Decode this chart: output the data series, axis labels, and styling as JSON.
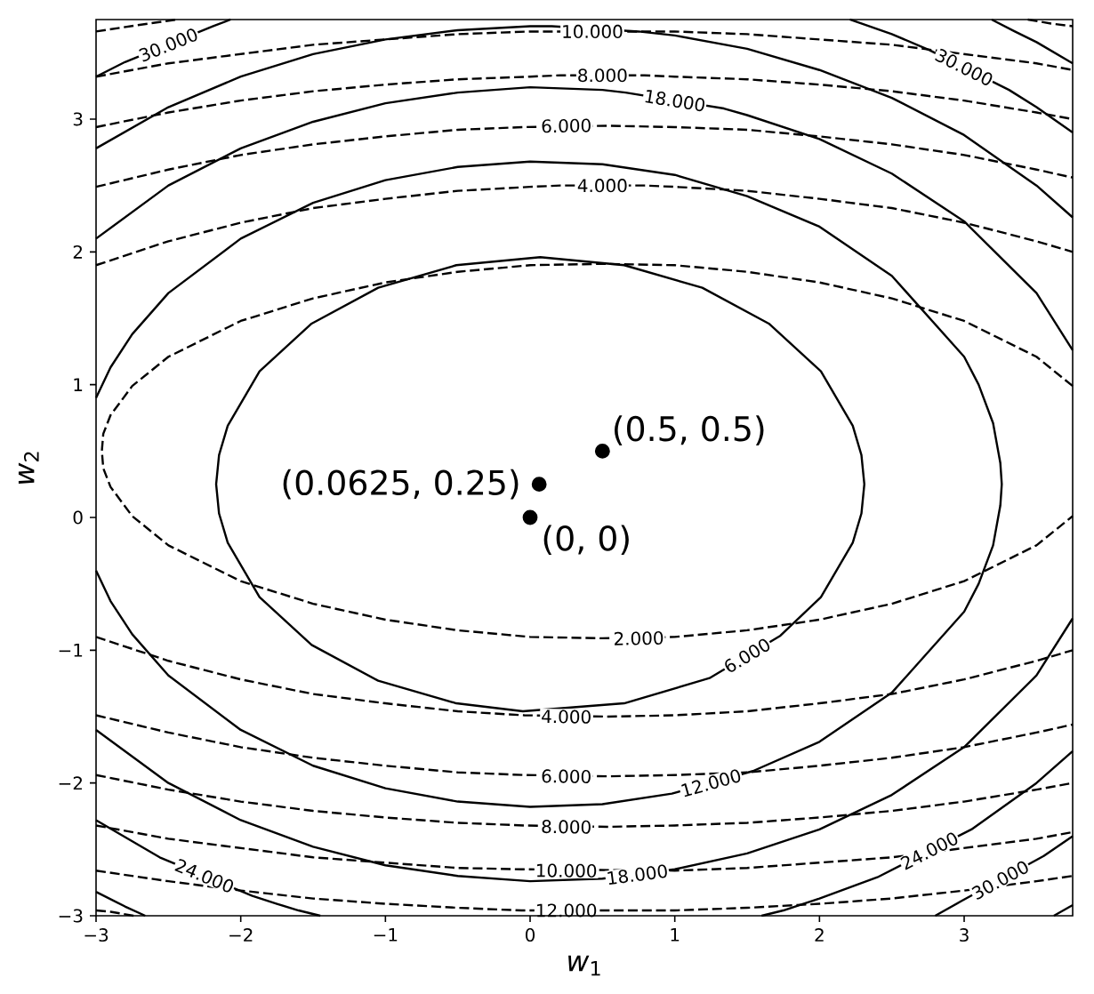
{
  "chart_data": {
    "type": "line",
    "xlabel": "*w*$_{1}$",
    "ylabel": "*w*$_{2}$",
    "xlim": [
      -3,
      3.75
    ],
    "ylim": [
      -3,
      3.75
    ],
    "xticks": [
      {
        "value": -3,
        "label": "−3"
      },
      {
        "value": -2,
        "label": "−2"
      },
      {
        "value": -1,
        "label": "−1"
      },
      0,
      1,
      2,
      3
    ],
    "yticks": [
      {
        "value": -3,
        "label": "−3"
      },
      {
        "value": -2,
        "label": "−2"
      },
      {
        "value": -1,
        "label": "−1"
      },
      0,
      1,
      2,
      3
    ],
    "series": [
      {
        "color": "#000000",
        "line_style": "dashed",
        "x": [
          3.75,
          3.5,
          3,
          2.5,
          2,
          1.5,
          1,
          0.5,
          0,
          -0.5,
          -1,
          -1.5,
          -2,
          -2.5,
          -2.75,
          -2.9,
          -2.95,
          -2.96,
          -2.95,
          -2.9,
          -2.75,
          -2.5,
          -2,
          -1.5,
          -1,
          -0.5,
          0,
          0.5,
          1,
          1.5,
          2,
          2.5,
          3,
          3.5,
          3.75
        ],
        "values": [
          0.99,
          1.21,
          1.48,
          1.65,
          1.77,
          1.85,
          1.9,
          1.91,
          1.9,
          1.85,
          1.77,
          1.65,
          1.48,
          1.21,
          0.99,
          0.77,
          0.63,
          0.5,
          0.37,
          0.23,
          0.01,
          -0.21,
          -0.48,
          -0.65,
          -0.77,
          -0.85,
          -0.9,
          -0.91,
          -0.9,
          -0.85,
          -0.77,
          -0.65,
          -0.48,
          -0.21,
          0.01
        ]
      },
      {
        "color": "#000000",
        "line_style": "dashed",
        "x": [
          -3,
          -2.5,
          -2,
          -1.5,
          -1,
          -0.5,
          0,
          0.21,
          0.79,
          1,
          1.5,
          2,
          2.5,
          3,
          3.5,
          3.75
        ],
        "values": [
          1.9,
          2.08,
          2.22,
          2.33,
          2.4,
          2.46,
          2.49,
          2.5,
          2.5,
          2.49,
          2.46,
          2.4,
          2.33,
          2.22,
          2.08,
          2.0
        ]
      },
      {
        "color": "#000000",
        "line_style": "dashed",
        "x": [
          -3,
          -2.5,
          -2,
          -1.5,
          -1,
          -0.5,
          -0.04,
          0.54,
          1,
          1.5,
          2,
          2.5,
          3,
          3.5,
          3.75
        ],
        "values": [
          -0.9,
          -1.08,
          -1.22,
          -1.33,
          -1.4,
          -1.46,
          -1.49,
          -1.5,
          -1.49,
          -1.46,
          -1.4,
          -1.33,
          -1.22,
          -1.08,
          -1.0
        ]
      },
      {
        "color": "#000000",
        "line_style": "dashed",
        "x": [
          -3,
          -2.5,
          -2,
          -1.5,
          -1,
          -0.5,
          -0.04,
          0.54,
          1,
          1.5,
          2,
          2.5,
          3,
          3.5,
          3.75
        ],
        "values": [
          2.49,
          2.62,
          2.73,
          2.81,
          2.87,
          2.92,
          2.94,
          2.95,
          2.94,
          2.92,
          2.87,
          2.81,
          2.73,
          2.62,
          2.56
        ]
      },
      {
        "color": "#000000",
        "line_style": "dashed",
        "x": [
          -3,
          -2.5,
          -2,
          -1.5,
          -1,
          -0.5,
          -0.04,
          0.54,
          1,
          1.5,
          2,
          2.5,
          3,
          3.5,
          3.75
        ],
        "values": [
          -1.49,
          -1.62,
          -1.73,
          -1.81,
          -1.87,
          -1.92,
          -1.94,
          -1.95,
          -1.94,
          -1.92,
          -1.87,
          -1.81,
          -1.73,
          -1.62,
          -1.56
        ]
      },
      {
        "color": "#000000",
        "line_style": "dashed",
        "x": [
          -3,
          -2.5,
          -2,
          -1.5,
          -1,
          -0.5,
          0,
          0.21,
          0.79,
          1,
          1.5,
          2,
          2.5,
          3,
          3.5,
          3.75
        ],
        "values": [
          2.94,
          3.05,
          3.14,
          3.21,
          3.26,
          3.3,
          3.32,
          3.33,
          3.33,
          3.32,
          3.3,
          3.26,
          3.21,
          3.14,
          3.05,
          3.0
        ]
      },
      {
        "color": "#000000",
        "line_style": "dashed",
        "x": [
          -3,
          -2.5,
          -2,
          -1.5,
          -1,
          -0.5,
          -0.04,
          0.54,
          1,
          1.5,
          2,
          2.5,
          3,
          3.5,
          3.75
        ],
        "values": [
          -1.94,
          -2.05,
          -2.14,
          -2.21,
          -2.26,
          -2.3,
          -2.32,
          -2.33,
          -2.32,
          -2.3,
          -2.26,
          -2.21,
          -2.14,
          -2.05,
          -2.0
        ]
      },
      {
        "color": "#000000",
        "line_style": "dashed",
        "x": [
          -3,
          -2.5,
          -2,
          -1.5,
          -1,
          -0.5,
          0,
          0.12,
          0.74,
          1,
          1.5,
          2,
          2.5,
          3,
          3.5,
          3.75
        ],
        "values": [
          3.32,
          3.42,
          3.49,
          3.56,
          3.6,
          3.64,
          3.66,
          3.66,
          3.66,
          3.66,
          3.64,
          3.6,
          3.56,
          3.49,
          3.42,
          3.37
        ]
      },
      {
        "color": "#000000",
        "line_style": "dashed",
        "x": [
          -3,
          -2.5,
          -2,
          -1.5,
          -1,
          -0.5,
          -0.06,
          1,
          1.5,
          2,
          2.5,
          3,
          3.5,
          3.75
        ],
        "values": [
          -2.32,
          -2.42,
          -2.49,
          -2.56,
          -2.6,
          -2.64,
          -2.65,
          -2.66,
          -2.64,
          -2.6,
          -2.56,
          -2.49,
          -2.42,
          -2.37
        ]
      },
      {
        "color": "#000000",
        "line_style": "dashed",
        "x": [
          -3,
          -2.5,
          -2,
          -1.5,
          -1,
          -0.5,
          -0.06,
          0.56,
          1,
          1.5,
          2,
          2.5,
          3,
          3.5,
          3.75
        ],
        "values": [
          -2.66,
          -2.74,
          -2.81,
          -2.87,
          -2.91,
          -2.94,
          -2.96,
          -2.96,
          -2.96,
          -2.94,
          -2.91,
          -2.87,
          -2.81,
          -2.74,
          -2.7
        ]
      },
      {
        "color": "#000000",
        "line_style": "dashed",
        "x": [
          -3,
          -2.7,
          -2.44
        ],
        "values": [
          3.66,
          3.71,
          3.75
        ]
      },
      {
        "color": "#000000",
        "line_style": "dashed",
        "x": [
          3.44,
          3.6,
          3.75
        ],
        "values": [
          3.75,
          3.72,
          3.7
        ]
      },
      {
        "color": "#000000",
        "line_style": "dashed",
        "x": [
          -3,
          -2.9,
          -2.74
        ],
        "values": [
          -2.96,
          -2.97,
          -3
        ]
      },
      {
        "color": "#000000",
        "line_style": "solid",
        "x": [
          1.73,
          2.01,
          2.23,
          2.29,
          2.31,
          2.29,
          2.23,
          2.01,
          1.65,
          1.19,
          0.65,
          0.07,
          -0.51,
          -1.05,
          -1.51,
          -1.87,
          -2.09,
          -2.15,
          -2.17,
          -2.15,
          -2.09,
          -1.87,
          -1.51,
          -1.05,
          -0.51,
          -0.05,
          0.65,
          1.24,
          1.73,
          2.01
        ],
        "values": [
          -0.89,
          -0.6,
          -0.19,
          0.03,
          0.25,
          0.47,
          0.69,
          1.1,
          1.46,
          1.73,
          1.9,
          1.96,
          1.9,
          1.73,
          1.46,
          1.1,
          0.69,
          0.47,
          0.25,
          0.03,
          -0.19,
          -0.6,
          -0.96,
          -1.23,
          -1.4,
          -1.46,
          -1.4,
          -1.21,
          -0.89,
          -0.6
        ]
      },
      {
        "color": "#000000",
        "line_style": "solid",
        "x": [
          -3,
          -2.9,
          -2.75,
          -2.5,
          -2,
          -1.5,
          -1,
          -0.5,
          0,
          0.5,
          1,
          1.5,
          2,
          2.5,
          3,
          3.1,
          3.2,
          3.25,
          3.26,
          3.25,
          3.2,
          3.1,
          3,
          2.5,
          2,
          1.54,
          0.98,
          0.5,
          0,
          -0.5,
          -1,
          -1.5,
          -2,
          -2.5,
          -2.75,
          -2.9,
          -3
        ],
        "values": [
          0.9,
          1.13,
          1.38,
          1.69,
          2.1,
          2.37,
          2.54,
          2.64,
          2.68,
          2.66,
          2.58,
          2.42,
          2.19,
          1.82,
          1.21,
          1.0,
          0.71,
          0.41,
          0.25,
          0.09,
          -0.21,
          -0.5,
          -0.71,
          -1.32,
          -1.69,
          -1.91,
          -2.08,
          -2.16,
          -2.18,
          -2.14,
          -2.04,
          -1.87,
          -1.6,
          -1.19,
          -0.88,
          -0.63,
          -0.4
        ]
      },
      {
        "color": "#000000",
        "line_style": "solid",
        "x": [
          -3,
          -2.5,
          -2,
          -1.5,
          -1,
          -0.5,
          0,
          0.5,
          0.66,
          1.34,
          1.5,
          2,
          2.5,
          3,
          3.5,
          3.75
        ],
        "values": [
          2.1,
          2.5,
          2.78,
          2.98,
          3.12,
          3.2,
          3.24,
          3.22,
          3.2,
          3.08,
          3.03,
          2.85,
          2.59,
          2.23,
          1.69,
          1.26
        ]
      },
      {
        "color": "#000000",
        "line_style": "solid",
        "x": [
          -3,
          -2.5,
          -2,
          -1.5,
          -1,
          -0.5,
          0,
          0.5,
          1,
          1.5,
          2,
          2.5,
          3,
          3.5,
          3.75
        ],
        "values": [
          -1.6,
          -2.0,
          -2.28,
          -2.48,
          -2.62,
          -2.7,
          -2.74,
          -2.72,
          -2.65,
          -2.53,
          -2.35,
          -2.09,
          -1.73,
          -1.19,
          -0.76
        ]
      },
      {
        "color": "#000000",
        "line_style": "solid",
        "x": [
          -3,
          -2.5,
          -2,
          -1.5,
          -1,
          -0.5,
          0,
          0.15,
          0.75,
          1,
          1.5,
          2,
          2.5,
          3,
          3.5,
          3.75
        ],
        "values": [
          2.78,
          3.09,
          3.32,
          3.49,
          3.6,
          3.67,
          3.7,
          3.7,
          3.66,
          3.63,
          3.53,
          3.37,
          3.16,
          2.88,
          2.5,
          2.26
        ]
      },
      {
        "color": "#000000",
        "line_style": "solid",
        "x": [
          -3,
          -2.56,
          -1.92,
          -1.75,
          -1.6,
          -1.45
        ],
        "values": [
          -2.28,
          -2.56,
          -2.85,
          -2.91,
          -2.96,
          -3
        ]
      },
      {
        "color": "#000000",
        "line_style": "solid",
        "x": [
          1.6,
          1.75,
          2,
          2.4,
          3.05,
          3.5,
          3.75
        ],
        "values": [
          -3,
          -2.96,
          -2.87,
          -2.71,
          -2.35,
          -2.0,
          -1.76
        ]
      },
      {
        "color": "#000000",
        "line_style": "solid",
        "x": [
          -3,
          -2.8,
          -2.19,
          -2.07
        ],
        "values": [
          3.32,
          3.43,
          3.7,
          3.75
        ]
      },
      {
        "color": "#000000",
        "line_style": "solid",
        "x": [
          -3,
          -2.8,
          -2.66
        ],
        "values": [
          -2.82,
          -2.93,
          -3
        ]
      },
      {
        "color": "#000000",
        "line_style": "solid",
        "x": [
          2.21,
          2.5,
          2.76,
          3.31,
          3.5,
          3.75
        ],
        "values": [
          3.75,
          3.64,
          3.52,
          3.22,
          3.09,
          2.9
        ]
      },
      {
        "color": "#000000",
        "line_style": "solid",
        "x": [
          2.8,
          2.98,
          3.55,
          3.75
        ],
        "values": [
          -3,
          -2.89,
          -2.55,
          -2.4
        ]
      },
      {
        "color": "#000000",
        "line_style": "solid",
        "x": [
          3.19,
          3.35,
          3.5,
          3.75
        ],
        "values": [
          3.75,
          3.66,
          3.58,
          3.42
        ]
      },
      {
        "color": "#000000",
        "line_style": "solid",
        "x": [
          3.62,
          3.75
        ],
        "values": [
          -3,
          -2.92
        ]
      },
      {
        "type": "scatter",
        "marker": "circle",
        "color": "#000000",
        "x": [
          0,
          0.0625,
          0.5
        ],
        "values": [
          0,
          0.25,
          0.5
        ]
      }
    ],
    "annotations": [
      {
        "text": "2.000",
        "x": 0.75,
        "y": -0.91
      },
      {
        "text": "4.000",
        "x": 0.5,
        "y": 2.5
      },
      {
        "text": "4.000",
        "x": 0.25,
        "y": -1.5
      },
      {
        "text": "6.000",
        "x": 0.25,
        "y": 2.95
      },
      {
        "text": "6.000",
        "x": 0.25,
        "y": -1.95
      },
      {
        "text": "8.000",
        "x": 0.5,
        "y": 3.33
      },
      {
        "text": "8.000",
        "x": 0.25,
        "y": -2.33
      },
      {
        "text": "10.000",
        "x": 0.43,
        "y": 3.66
      },
      {
        "text": "10.000",
        "x": 0.25,
        "y": -2.66
      },
      {
        "text": "12.000",
        "x": 0.25,
        "y": -2.96
      },
      {
        "text": "6.000",
        "x": 1.5,
        "y": -1.04
      },
      {
        "text": "12.000",
        "x": 1.25,
        "y": -2.0
      },
      {
        "text": "18.000",
        "x": 1.0,
        "y": 3.14
      },
      {
        "text": "18.000",
        "x": 0.74,
        "y": -2.69
      },
      {
        "text": "24.000",
        "x": -2.25,
        "y": -2.7
      },
      {
        "text": "24.000",
        "x": 2.76,
        "y": -2.51
      },
      {
        "text": "30.000",
        "x": -2.5,
        "y": 3.56
      },
      {
        "text": "30.000",
        "x": 3.0,
        "y": 3.39
      },
      {
        "text": "30.000",
        "x": 3.25,
        "y": -2.73
      },
      {
        "text": "(0.0625, 0.25)",
        "x": 0.0625,
        "y": 0.25
      },
      {
        "text": "(0.5, 0.5)",
        "x": 0.5,
        "y": 0.5
      },
      {
        "text": "(0, 0)",
        "x": 0,
        "y": 0
      }
    ]
  }
}
